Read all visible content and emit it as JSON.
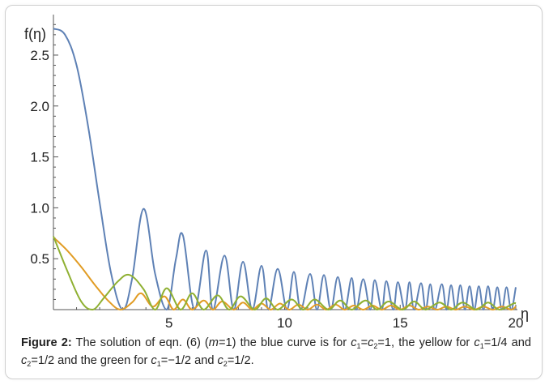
{
  "chart_data": {
    "type": "line",
    "ylabel": "f(η)",
    "xlabel": "η",
    "xlim": [
      0,
      20
    ],
    "ylim": [
      0,
      2.85
    ],
    "x_ticks": [
      5,
      10,
      15,
      20
    ],
    "y_ticks": [
      0.5,
      1.0,
      1.5,
      2.0,
      2.5
    ],
    "x_tick_labels": [
      "5",
      "10",
      "15",
      "20"
    ],
    "y_tick_labels": [
      "0.5",
      "1.0",
      "1.5",
      "2.0",
      "2.5"
    ],
    "series": [
      {
        "color": "#5E81B5",
        "curve": "c1=c2=1",
        "x": [
          0,
          0.5,
          1.0,
          1.5,
          2.0,
          2.5,
          3.0,
          3.4,
          3.9,
          4.4,
          4.9,
          5.3,
          5.6,
          6.1,
          6.6,
          6.9,
          7.4,
          7.8,
          8.2,
          8.6,
          9.0,
          9.3,
          9.7,
          10.1,
          10.4,
          10.7,
          11.1,
          11.4,
          11.7,
          12.0,
          12.3,
          12.6,
          12.9,
          13.1,
          13.4,
          13.7,
          13.9,
          14.2,
          14.4,
          14.7,
          14.9,
          15.2,
          15.4,
          15.6,
          15.9,
          16.1,
          16.3,
          16.5,
          16.8,
          17.0,
          17.2,
          17.4,
          17.6,
          17.8,
          18.0,
          18.2,
          18.4,
          18.6,
          18.8,
          19.0,
          19.2,
          19.4,
          19.6,
          19.8,
          20.0
        ],
        "y": [
          2.76,
          2.7,
          2.4,
          1.8,
          1.05,
          0.35,
          0.0,
          0.3,
          0.99,
          0.35,
          0.0,
          0.5,
          0.73,
          0.0,
          0.58,
          0.0,
          0.53,
          0.0,
          0.47,
          0.0,
          0.43,
          0.0,
          0.4,
          0.0,
          0.37,
          0.0,
          0.35,
          0.0,
          0.34,
          0.0,
          0.32,
          0.0,
          0.31,
          0.0,
          0.3,
          0.0,
          0.29,
          0.0,
          0.28,
          0.0,
          0.27,
          0.0,
          0.27,
          0.0,
          0.26,
          0.0,
          0.25,
          0.0,
          0.25,
          0.0,
          0.24,
          0.0,
          0.24,
          0.0,
          0.23,
          0.0,
          0.23,
          0.0,
          0.23,
          0.0,
          0.22,
          0.0,
          0.22,
          0.0,
          0.22
        ]
      },
      {
        "color": "#E19C24",
        "curve": "c1=1/4, c2=1/2",
        "x": [
          0,
          0.6,
          1.2,
          1.8,
          2.4,
          2.9,
          3.4,
          3.8,
          4.3,
          4.8,
          5.2,
          5.6,
          6.0,
          6.5,
          6.9,
          7.3,
          7.8,
          8.2,
          8.6,
          9.0,
          9.4,
          9.8,
          10.2,
          10.6,
          11.0,
          11.4,
          11.8,
          12.2,
          12.6,
          13.0,
          13.4,
          13.8,
          14.2,
          14.6,
          15.0,
          15.4,
          15.8,
          16.2,
          16.6,
          17.0,
          17.4,
          17.8,
          18.2,
          18.6,
          19.0,
          19.4,
          19.8,
          20.0
        ],
        "y": [
          0.71,
          0.58,
          0.42,
          0.24,
          0.08,
          0.0,
          0.07,
          0.16,
          0.03,
          0.13,
          0.0,
          0.1,
          0.0,
          0.09,
          0.0,
          0.08,
          0.0,
          0.07,
          0.0,
          0.06,
          0.0,
          0.06,
          0.0,
          0.05,
          0.0,
          0.05,
          0.0,
          0.05,
          0.0,
          0.04,
          0.0,
          0.04,
          0.0,
          0.04,
          0.0,
          0.04,
          0.0,
          0.03,
          0.0,
          0.03,
          0.0,
          0.03,
          0.0,
          0.03,
          0.0,
          0.03,
          0.0,
          0.03
        ]
      },
      {
        "color": "#8FB032",
        "curve": "c1=-1/2, c2=1/2",
        "x": [
          0,
          0.6,
          1.2,
          1.7,
          2.2,
          2.8,
          3.3,
          3.9,
          4.4,
          4.9,
          5.5,
          6.0,
          6.5,
          7.1,
          7.6,
          8.1,
          8.7,
          9.2,
          9.7,
          10.3,
          10.8,
          11.3,
          11.9,
          12.4,
          12.9,
          13.5,
          14.0,
          14.5,
          15.1,
          15.6,
          16.1,
          16.7,
          17.2,
          17.7,
          18.3,
          18.8,
          19.3,
          19.9,
          20.0
        ],
        "y": [
          0.72,
          0.38,
          0.08,
          0.0,
          0.12,
          0.28,
          0.34,
          0.2,
          0.0,
          0.21,
          0.0,
          0.16,
          0.0,
          0.14,
          0.0,
          0.13,
          0.0,
          0.11,
          0.0,
          0.1,
          0.0,
          0.1,
          0.0,
          0.09,
          0.0,
          0.09,
          0.0,
          0.08,
          0.0,
          0.08,
          0.0,
          0.07,
          0.0,
          0.07,
          0.0,
          0.07,
          0.0,
          0.06,
          0.06
        ]
      }
    ]
  },
  "caption": {
    "label": "Figure 2:",
    "text1": " The solution of eqn. (6) (",
    "m": "m",
    "text2": "=1) the blue curve is for ",
    "c": "c",
    "sub1": "1",
    "sub2": "2",
    "eq1": "=",
    "text3": "=1, the yellow for ",
    "text4": "=1/4 and ",
    "text5": "=1/2 and the green for ",
    "text6": "=−1/2 and ",
    "text7": "=1/2."
  }
}
